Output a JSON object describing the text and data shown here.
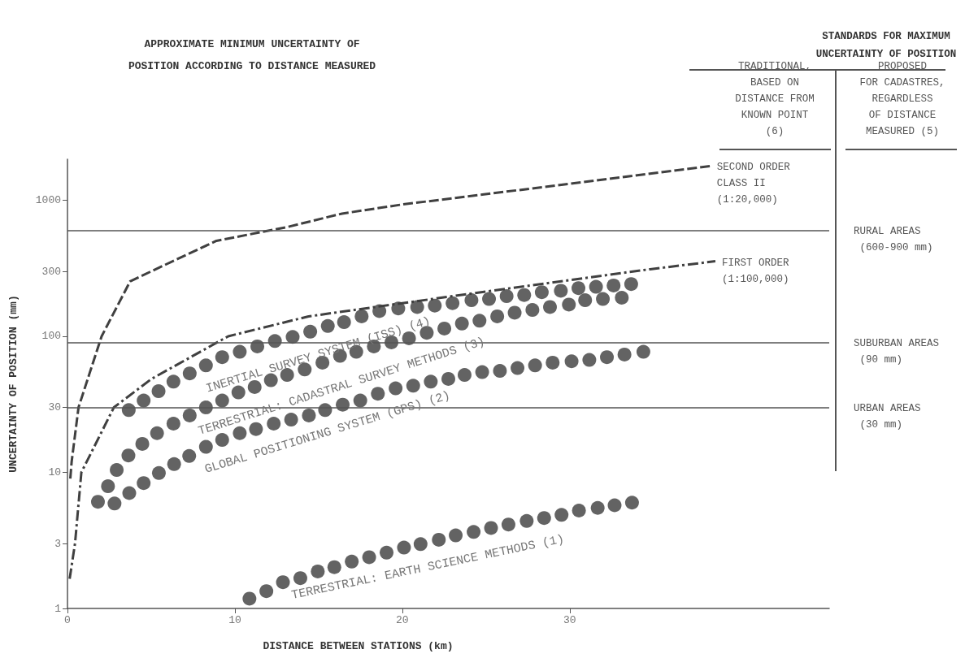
{
  "chart_data": {
    "type": "scatter",
    "title": "APPROXIMATE MINIMUM UNCERTAINTY OF\nPOSITION ACCORDING TO DISTANCE MEASURED",
    "subtitle": "STANDARDS FOR MAXIMUM\nUNCERTAINTY OF POSITION",
    "xlabel": "DISTANCE BETWEEN STATIONS (km)",
    "ylabel": "UNCERTAINTY OF POSITION (mm)",
    "annotations": [
      "TRADITIONAL,\nBASED ON\nDISTANCE FROM\nKNOWN POINT\n(6)",
      "PROPOSED\nFOR CADASTRES,\nREGARDLESS\nOF DISTANCE\nMEASURED (5)"
    ],
    "xlim": [
      0,
      45.5
    ],
    "xticks": [
      0,
      10,
      20,
      30
    ],
    "ylim": [
      1,
      2000
    ],
    "yticks": [
      1,
      3,
      10,
      30,
      100,
      300,
      1000
    ],
    "log": "y",
    "grid": false,
    "legend": false,
    "series": [
      {
        "name": "INERTIAL SURVEY SYSTEM (ISS) (4)",
        "marker": "circle",
        "color": "#3c3c3c",
        "x": [
          3.66,
          4.55,
          5.44,
          6.33,
          7.3,
          8.27,
          9.24,
          10.29,
          11.34,
          12.39,
          13.45,
          14.5,
          15.55,
          16.52,
          17.57,
          18.63,
          19.76,
          20.89,
          21.94,
          23.0,
          24.13,
          25.18,
          26.23,
          27.28,
          28.33,
          29.47,
          30.52,
          31.57,
          32.62,
          33.67
        ],
        "values": [
          28.7,
          33.7,
          39.5,
          46.4,
          53.3,
          61.1,
          70.2,
          76.9,
          84.2,
          92.3,
          98.9,
          108,
          119,
          127,
          140,
          153,
          160,
          164,
          168,
          175,
          184,
          188,
          197,
          201,
          211,
          216,
          226,
          231,
          236,
          242
        ]
      },
      {
        "name": "TERRESTRIAL: CADASTRAL SURVEY METHODS (3)",
        "marker": "circle",
        "color": "#3c3c3c",
        "x": [
          1.82,
          2.42,
          2.94,
          3.64,
          4.47,
          5.35,
          6.33,
          7.3,
          8.27,
          9.24,
          10.21,
          11.18,
          12.15,
          13.12,
          14.17,
          15.23,
          16.28,
          17.25,
          18.3,
          19.35,
          20.4,
          21.46,
          22.51,
          23.56,
          24.61,
          25.67,
          26.71,
          27.77,
          28.82,
          29.95,
          30.92,
          31.98,
          33.11
        ],
        "values": [
          6.08,
          7.91,
          10.4,
          13.3,
          16.2,
          19.4,
          22.8,
          26.2,
          30.0,
          33.7,
          38.7,
          42.4,
          47.5,
          52.0,
          57.0,
          64.0,
          71.8,
          76.9,
          84.2,
          90.2,
          96.7,
          106,
          114,
          124,
          130,
          140,
          149,
          156,
          164,
          171,
          184,
          188,
          192
        ]
      },
      {
        "name": "GLOBAL POSITIONING SYSTEM (GPS) (2)",
        "marker": "circle",
        "color": "#3c3c3c",
        "x": [
          2.81,
          3.69,
          4.55,
          5.46,
          6.37,
          7.27,
          8.27,
          9.24,
          10.29,
          11.26,
          12.32,
          13.36,
          14.42,
          15.39,
          16.44,
          17.49,
          18.54,
          19.6,
          20.65,
          21.7,
          22.75,
          23.72,
          24.77,
          25.83,
          26.88,
          27.93,
          28.98,
          30.11,
          31.17,
          32.22,
          33.27,
          34.4
        ],
        "values": [
          5.9,
          7.04,
          8.34,
          9.88,
          11.5,
          13.2,
          15.4,
          17.3,
          19.4,
          20.8,
          22.8,
          24.4,
          26.2,
          28.7,
          31.4,
          33.7,
          37.8,
          41.4,
          43.3,
          46.4,
          48.6,
          52.0,
          54.5,
          55.7,
          58.4,
          61.1,
          64.0,
          65.5,
          67.0,
          70.2,
          73.4,
          76.9
        ]
      },
      {
        "name": "TERRESTRIAL: EARTH SCIENCE METHODS (1)",
        "marker": "circle",
        "color": "#3c3c3c",
        "x": [
          10.87,
          11.88,
          12.87,
          13.91,
          14.95,
          15.94,
          16.98,
          18.02,
          19.06,
          20.1,
          21.09,
          22.18,
          23.19,
          24.26,
          25.3,
          26.34,
          27.43,
          28.47,
          29.51,
          30.55,
          31.67,
          32.68,
          33.72
        ],
        "values": [
          1.18,
          1.34,
          1.56,
          1.67,
          1.87,
          2.01,
          2.21,
          2.38,
          2.57,
          2.8,
          2.97,
          3.2,
          3.44,
          3.65,
          3.9,
          4.14,
          4.39,
          4.62,
          4.87,
          5.24,
          5.48,
          5.73,
          5.99
        ]
      },
      {
        "name": "SECOND ORDER\nCLASS II\n(1:20,000)",
        "type": "line",
        "marker": "none",
        "line_style": "dashed",
        "color": "#404040",
        "x": [
          0.17,
          0.25,
          0.66,
          1.31,
          2.04,
          3.74,
          5.0,
          8.9,
          13.1,
          16.4,
          20,
          30,
          38.4
        ],
        "values": [
          9,
          12,
          30,
          53,
          100,
          253,
          300,
          503,
          634,
          797,
          930,
          1320,
          1780
        ]
      },
      {
        "name": "FIRST ORDER\n(1:100,000)",
        "type": "line",
        "marker": "none",
        "line_style": "dashdot",
        "color": "#404040",
        "x": [
          0.13,
          0.45,
          0.83,
          2.77,
          5.03,
          9.6,
          14.4,
          24.1,
          34.8,
          38.7
        ],
        "values": [
          1.65,
          3,
          10,
          30,
          48.7,
          100,
          140,
          206,
          311,
          356
        ]
      }
    ],
    "ref_lines": [
      {
        "axis": "y",
        "value": 600,
        "label": "RURAL AREAS\n (600-900 mm)",
        "color": "#555555"
      },
      {
        "axis": "y",
        "value": 90,
        "label": "SUBURBAN AREAS\n (90 mm)",
        "color": "#555555"
      },
      {
        "axis": "y",
        "value": 30,
        "label": "URBAN AREAS\n (30 mm)",
        "color": "#555555"
      }
    ]
  }
}
